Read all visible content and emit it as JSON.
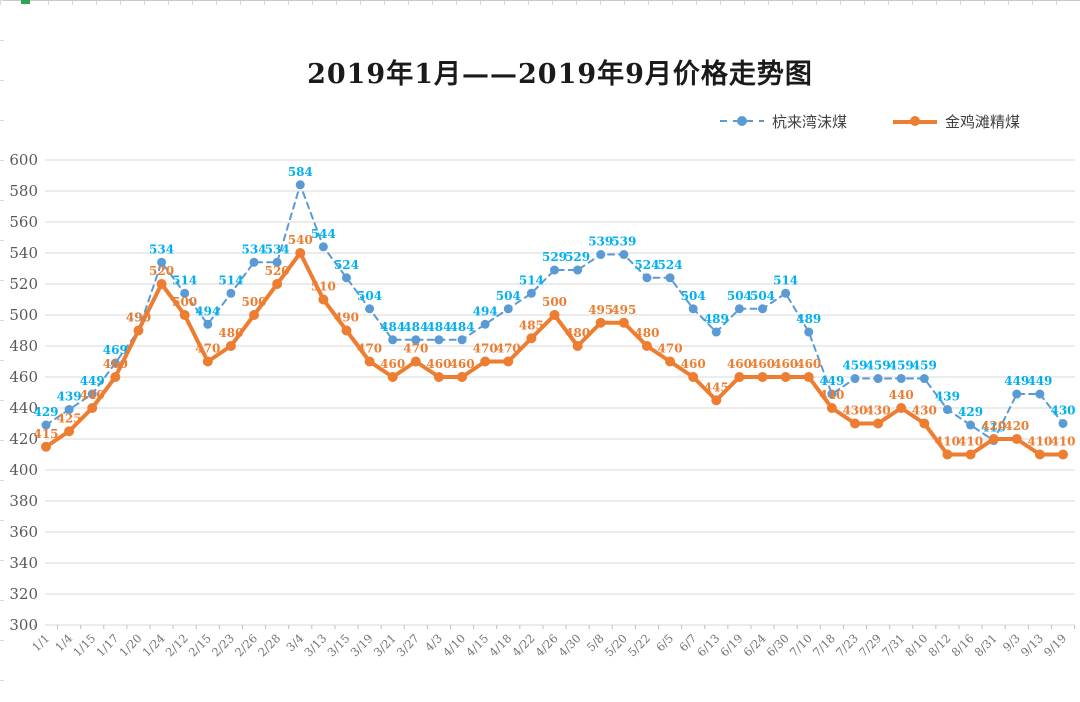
{
  "chart_data": {
    "type": "line",
    "title": "2019年1月——2019年9月价格走势图",
    "categories": [
      "1/1",
      "1/4",
      "1/15",
      "1/17",
      "1/20",
      "1/24",
      "2/12",
      "2/15",
      "2/23",
      "2/26",
      "2/28",
      "3/4",
      "3/13",
      "3/15",
      "3/19",
      "3/21",
      "3/27",
      "4/3",
      "4/10",
      "4/15",
      "4/18",
      "4/22",
      "4/26",
      "4/30",
      "5/8",
      "5/20",
      "5/22",
      "6/5",
      "6/7",
      "6/13",
      "6/19",
      "6/24",
      "6/30",
      "7/10",
      "7/18",
      "7/23",
      "7/29",
      "7/31",
      "8/10",
      "8/12",
      "8/16",
      "8/31",
      "9/3",
      "9/13",
      "9/19"
    ],
    "series": [
      {
        "name": "杭来湾沫煤",
        "style": "dashed",
        "color": "#5B9BD5",
        "label_color": "#00B0F0",
        "values": [
          429,
          439,
          449,
          469,
          490,
          534,
          514,
          494,
          514,
          534,
          534,
          584,
          544,
          524,
          504,
          484,
          484,
          484,
          484,
          494,
          504,
          514,
          529,
          529,
          539,
          539,
          524,
          524,
          504,
          489,
          504,
          504,
          514,
          489,
          449,
          459,
          459,
          459,
          459,
          439,
          429,
          419,
          449,
          449,
          430
        ]
      },
      {
        "name": "金鸡滩精煤",
        "style": "solid",
        "color": "#ED7D31",
        "label_color": "#ED7D31",
        "values": [
          415,
          425,
          440,
          460,
          490,
          520,
          500,
          470,
          480,
          500,
          520,
          540,
          510,
          490,
          470,
          460,
          470,
          460,
          460,
          470,
          470,
          485,
          500,
          480,
          495,
          495,
          480,
          470,
          460,
          445,
          460,
          460,
          460,
          460,
          440,
          430,
          430,
          440,
          430,
          410,
          410,
          420,
          420,
          410,
          410
        ]
      }
    ],
    "ylim": [
      300,
      600
    ],
    "y_ticks": [
      600,
      580,
      560,
      540,
      520,
      500,
      480,
      460,
      440,
      420,
      400,
      380,
      360,
      340,
      320,
      300
    ],
    "grid": true,
    "legend_position": "top-right",
    "xlabel": "",
    "ylabel": "",
    "axis_text_color": "#595959",
    "gridline_color": "#D9D9D9"
  }
}
